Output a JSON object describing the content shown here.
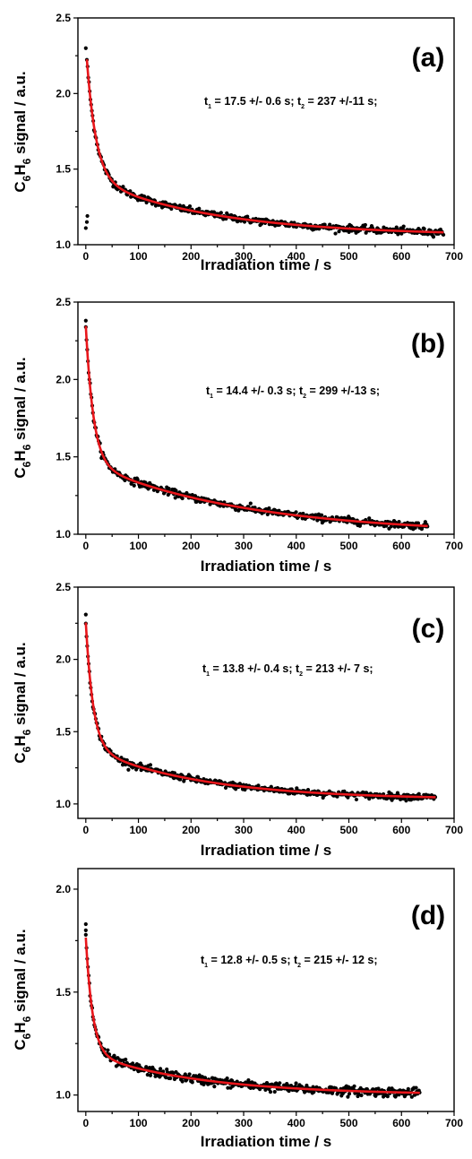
{
  "chart_data": [
    {
      "type": "scatter",
      "panel_label": "(a)",
      "xlabel": "Irradiation time / s",
      "ylabel": {
        "base": "C",
        "sub1": "6",
        "mid": "H",
        "sub2": "6",
        "rest": " signal / a.u."
      },
      "annotation": {
        "t1_symbol": "t",
        "t1_sub": "1",
        "t1_text": " = 17.5 +/- 0.6 s; ",
        "t2_symbol": "t",
        "t2_sub": "2",
        "t2_text": " = 237 +/-11 s;"
      },
      "xlim": [
        -15,
        700
      ],
      "ylim": [
        1.0,
        2.5
      ],
      "x_ticks": [
        0,
        100,
        200,
        300,
        400,
        500,
        600,
        700
      ],
      "y_ticks": [
        1.0,
        1.5,
        2.0,
        2.5
      ],
      "fit": {
        "y0": 1.06,
        "a1": 0.88,
        "tau1": 17.5,
        "a2": 0.385,
        "tau2": 237,
        "x_start": 2,
        "x_end": 680
      },
      "outliers": [
        [
          0,
          1.11
        ],
        [
          2,
          1.15
        ],
        [
          3,
          1.19
        ],
        [
          0,
          2.3
        ]
      ],
      "series": [
        {
          "name": "data",
          "color": "#000000",
          "x": [
            0,
            10,
            20,
            30,
            40,
            60,
            80,
            100,
            150,
            200,
            250,
            300,
            350,
            400,
            450,
            500,
            550,
            600,
            650,
            680
          ],
          "y": [
            2.3,
            1.98,
            1.82,
            1.7,
            1.62,
            1.55,
            1.52,
            1.49,
            1.45,
            1.4,
            1.37,
            1.33,
            1.32,
            1.3,
            1.29,
            1.27,
            1.25,
            1.24,
            1.23,
            1.22
          ]
        },
        {
          "name": "fit",
          "color": "#e8161b"
        }
      ]
    },
    {
      "type": "scatter",
      "panel_label": "(b)",
      "xlabel": "Irradiation time / s",
      "ylabel": {
        "base": "C",
        "sub1": "6",
        "mid": "H",
        "sub2": "6",
        "rest": " signal / a.u."
      },
      "annotation": {
        "t1_symbol": "t",
        "t1_sub": "1",
        "t1_text": " = 14.4 +/- 0.3 s; ",
        "t2_symbol": "t",
        "t2_sub": "2",
        "t2_text": " = 299 +/-13 s;"
      },
      "xlim": [
        -15,
        700
      ],
      "ylim": [
        1.0,
        2.5
      ],
      "x_ticks": [
        0,
        100,
        200,
        300,
        400,
        500,
        600,
        700
      ],
      "y_ticks": [
        1.0,
        1.5,
        2.0,
        2.5
      ],
      "fit": {
        "y0": 1.0,
        "a1": 0.88,
        "tau1": 14.4,
        "a2": 0.465,
        "tau2": 299,
        "x_start": 0,
        "x_end": 650
      },
      "outliers": [
        [
          0,
          2.38
        ]
      ],
      "series": [
        {
          "name": "data",
          "color": "#000000",
          "x": [
            0,
            10,
            20,
            30,
            40,
            60,
            80,
            100,
            150,
            200,
            250,
            300,
            350,
            400,
            450,
            500,
            550,
            600,
            650
          ],
          "y": [
            2.35,
            2.0,
            1.8,
            1.65,
            1.55,
            1.47,
            1.44,
            1.42,
            1.38,
            1.35,
            1.32,
            1.29,
            1.27,
            1.25,
            1.23,
            1.21,
            1.2,
            1.19,
            1.17
          ]
        },
        {
          "name": "fit",
          "color": "#e8161b"
        }
      ]
    },
    {
      "type": "scatter",
      "panel_label": "(c)",
      "xlabel": "Irradiation time / s",
      "ylabel": {
        "base": "C",
        "sub1": "6",
        "mid": "H",
        "sub2": "6",
        "rest": " signal / a.u."
      },
      "annotation": {
        "t1_symbol": "t",
        "t1_sub": "1",
        "t1_text": " = 13.8 +/- 0.4 s; ",
        "t2_symbol": "t",
        "t2_sub": "2",
        "t2_text": " = 213 +/- 7 s;"
      },
      "xlim": [
        -15,
        700
      ],
      "ylim": [
        0.9,
        2.5
      ],
      "x_ticks": [
        0,
        100,
        200,
        300,
        400,
        500,
        600,
        700
      ],
      "y_ticks": [
        1.0,
        1.5,
        2.0,
        2.5
      ],
      "fit": {
        "y0": 1.03,
        "a1": 0.86,
        "tau1": 13.8,
        "a2": 0.365,
        "tau2": 213,
        "x_start": 0,
        "x_end": 665
      },
      "outliers": [
        [
          0,
          2.31
        ]
      ],
      "series": [
        {
          "name": "data",
          "color": "#000000",
          "x": [
            0,
            10,
            20,
            30,
            40,
            60,
            80,
            100,
            150,
            200,
            250,
            300,
            350,
            400,
            450,
            500,
            550,
            600,
            650,
            665
          ],
          "y": [
            2.25,
            1.9,
            1.7,
            1.55,
            1.45,
            1.37,
            1.32,
            1.29,
            1.24,
            1.2,
            1.17,
            1.15,
            1.13,
            1.11,
            1.1,
            1.09,
            1.08,
            1.07,
            1.06,
            1.06
          ]
        },
        {
          "name": "fit",
          "color": "#e8161b"
        }
      ]
    },
    {
      "type": "scatter",
      "panel_label": "(d)",
      "xlabel": "Irradiation time / s",
      "ylabel": {
        "base": "C",
        "sub1": "6",
        "mid": "H",
        "sub2": "6",
        "rest": " signal / a.u."
      },
      "annotation": {
        "t1_symbol": "t",
        "t1_sub": "1",
        "t1_text": " = 12.8 +/- 0.5 s; ",
        "t2_symbol": "t",
        "t2_sub": "2",
        "t2_text": " = 215 +/- 12 s;"
      },
      "xlim": [
        -15,
        700
      ],
      "ylim": [
        0.92,
        2.1
      ],
      "x_ticks": [
        0,
        100,
        200,
        300,
        400,
        500,
        600,
        700
      ],
      "y_ticks": [
        1.0,
        1.5,
        2.0
      ],
      "fit": {
        "y0": 1.0,
        "a1": 0.56,
        "tau1": 12.8,
        "a2": 0.205,
        "tau2": 215,
        "x_start": 0,
        "x_end": 635
      },
      "outliers": [
        [
          0,
          1.83
        ],
        [
          0,
          1.8
        ]
      ],
      "series": [
        {
          "name": "data",
          "color": "#000000",
          "x": [
            0,
            10,
            20,
            30,
            40,
            60,
            80,
            100,
            150,
            200,
            250,
            300,
            350,
            400,
            450,
            500,
            550,
            600,
            635
          ],
          "y": [
            1.77,
            1.53,
            1.39,
            1.31,
            1.27,
            1.22,
            1.2,
            1.19,
            1.16,
            1.14,
            1.12,
            1.1,
            1.09,
            1.08,
            1.08,
            1.07,
            1.06,
            1.06,
            1.05
          ]
        },
        {
          "name": "fit",
          "color": "#e8161b"
        }
      ]
    }
  ]
}
